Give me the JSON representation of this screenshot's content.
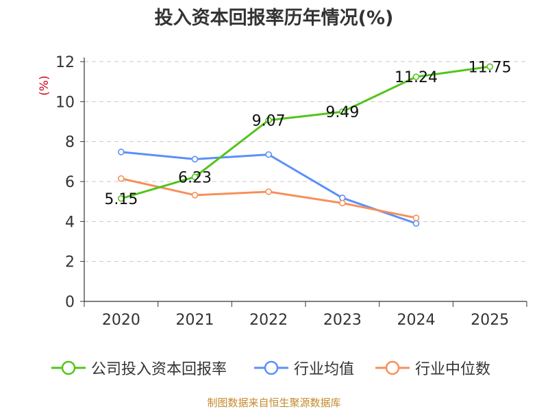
{
  "chart_data": {
    "type": "line",
    "title": "投入资本回报率历年情况(%)",
    "ylabel": "(%)",
    "xlabel": "",
    "categories": [
      "2020",
      "2021",
      "2022",
      "2023",
      "2024",
      "2025"
    ],
    "ylim": [
      0,
      12
    ],
    "yticks": [
      0,
      2,
      4,
      6,
      8,
      10,
      12
    ],
    "grid": true,
    "legend_position": "bottom",
    "series": [
      {
        "name": "公司投入资本回报率",
        "color": "#52c41a",
        "values": [
          5.15,
          6.23,
          9.07,
          9.49,
          11.24,
          11.75
        ],
        "labels": [
          "5.15",
          "6.23",
          "9.07",
          "9.49",
          "11.24",
          "11.75"
        ]
      },
      {
        "name": "行业均值",
        "color": "#5b8ff9",
        "values": [
          7.48,
          7.12,
          7.35,
          5.18,
          3.9,
          null
        ]
      },
      {
        "name": "行业中位数",
        "color": "#f6905a",
        "values": [
          6.15,
          5.32,
          5.49,
          4.92,
          4.18,
          null
        ]
      }
    ]
  },
  "source": "制图数据来自恒生聚源数据库"
}
